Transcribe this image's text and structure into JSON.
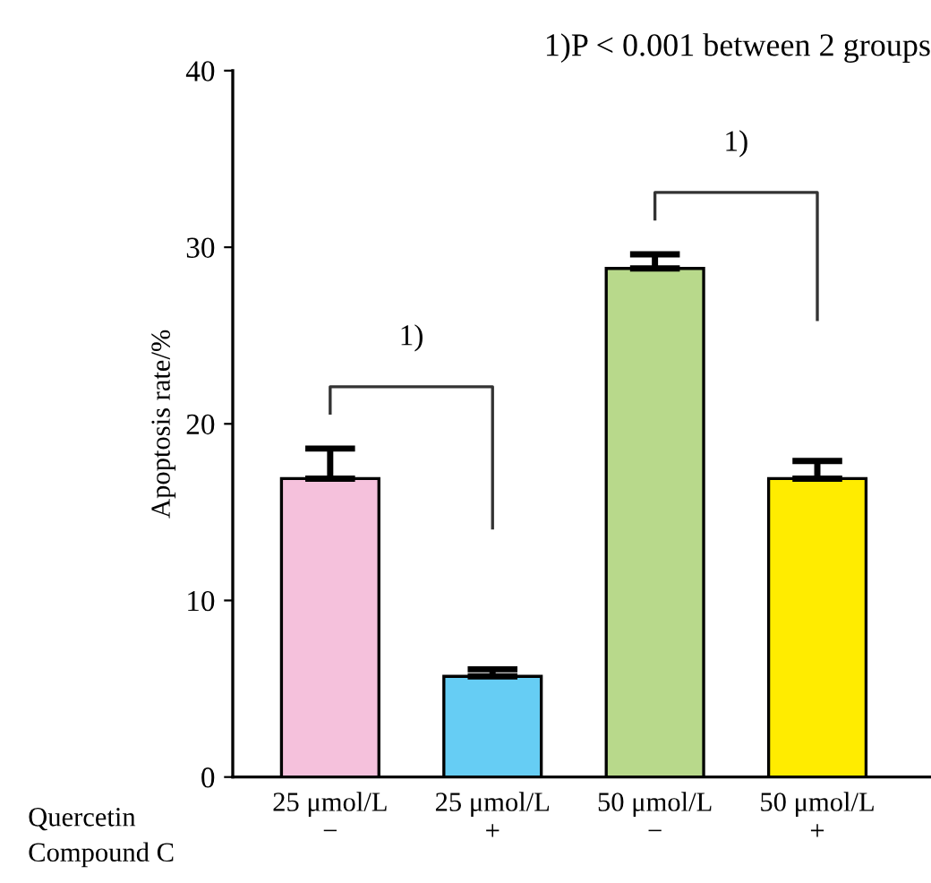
{
  "chart_data": {
    "type": "bar",
    "title": "1)P < 0.001 between 2 groups",
    "ylabel": "Apoptosis rate/%",
    "categories": [
      "25 μmol/L\n−",
      "25 μmol/L\n+",
      "50 μmol/L\n−",
      "50 μmol/L\n+"
    ],
    "values": [
      16.9,
      5.7,
      28.8,
      16.9
    ],
    "errors": [
      [
        16.9,
        18.6
      ],
      [
        5.7,
        6.1
      ],
      [
        28.8,
        29.6
      ],
      [
        16.9,
        17.9
      ]
    ],
    "colors": [
      "#f5c1dc",
      "#66cdf4",
      "#b8d98b",
      "#ffec00"
    ],
    "ylim": [
      0,
      40
    ],
    "yticks": [
      0,
      10,
      20,
      30,
      40
    ],
    "grid": false,
    "legend": false,
    "annotations": [
      "Quercetin",
      "Compound C",
      "1)",
      "1)"
    ]
  }
}
